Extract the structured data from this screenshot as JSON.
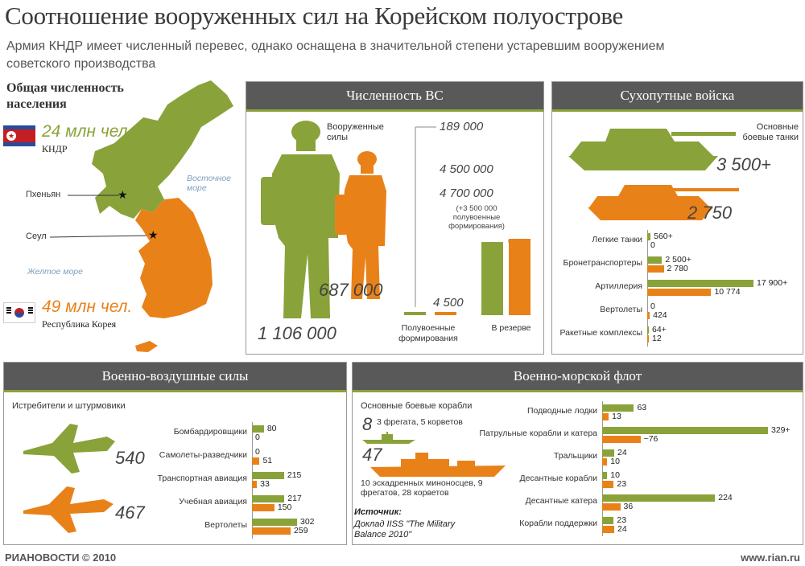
{
  "header": {
    "title": "Соотношение вооруженных сил на Корейском полуострове",
    "subtitle": "Армия КНДР имеет численный перевес, однако оснащена в значительной степени устаревшим вооружением советского производства"
  },
  "map": {
    "heading": "Общая численность населения",
    "north_pop": "24 млн чел.",
    "north_name": "КНДР",
    "south_pop": "49 млн чел.",
    "south_name": "Республика Корея",
    "pyongyang": "Пхеньян",
    "seoul": "Сеул",
    "east_sea": "Восточное море",
    "yellow_sea": "Желтое море"
  },
  "colors": {
    "north": "#8aa23a",
    "south": "#e98119",
    "header_bg": "#595959"
  },
  "armed": {
    "heading": "Численность ВС",
    "people_label": "Вооруженные силы",
    "north_total": "1 106 000",
    "south_total": "687 000",
    "para_label": "Полувоенные формирования",
    "reserve_label": "В резерве",
    "north_para": "189 000",
    "south_para": "4 500",
    "north_reserve": "4 500 000",
    "south_reserve": "4 700 000",
    "south_reserve_note": "(+3 500 000 полувоенные формирования)"
  },
  "ground": {
    "heading": "Сухопутные войска",
    "tanks_label": "Основные боевые танки",
    "north_tanks": "3 500+",
    "south_tanks": "2 750"
  },
  "air": {
    "heading": "Военно-воздушные силы",
    "fighters_label": "Истребители и штурмовики",
    "north_fighters": "540",
    "south_fighters": "467"
  },
  "navy": {
    "heading": "Военно-морской флот",
    "ships_label": "Основные боевые корабли",
    "north_ships": "8",
    "north_ships_note": "3 фрегата, 5 корветов",
    "south_ships": "47",
    "south_ships_note": "10 эскадренных миноносцев, 9 фрегатов, 28 корветов",
    "source_label": "Источник:",
    "source_text": "Доклад IISS \"The Military Balance 2010\""
  },
  "footer": {
    "left": "РИАНОВОСТИ © 2010",
    "right": "www.rian.ru"
  },
  "chart_data": [
    {
      "type": "bar",
      "title": "Сухопутные войска",
      "categories": [
        "Легкие танки",
        "Бронетранспортеры",
        "Артиллерия",
        "Вертолеты",
        "Ракетные комплексы"
      ],
      "series": [
        {
          "name": "КНДР",
          "values": [
            560,
            2500,
            17900,
            0,
            64
          ],
          "labels": [
            "560+",
            "2 500+",
            "17 900+",
            "0",
            "64+"
          ]
        },
        {
          "name": "Республика Корея",
          "values": [
            0,
            2780,
            10774,
            424,
            12
          ],
          "labels": [
            "0",
            "2 780",
            "10 774",
            "424",
            "12"
          ]
        }
      ]
    },
    {
      "type": "bar",
      "title": "Военно-воздушные силы",
      "categories": [
        "Бомбардировщики",
        "Самолеты-разведчики",
        "Транспортная авиация",
        "Учебная авиация",
        "Вертолеты"
      ],
      "series": [
        {
          "name": "КНДР",
          "values": [
            80,
            0,
            215,
            217,
            302
          ],
          "labels": [
            "80",
            "0",
            "215",
            "217",
            "302"
          ]
        },
        {
          "name": "Республика Корея",
          "values": [
            0,
            51,
            33,
            150,
            259
          ],
          "labels": [
            "0",
            "51",
            "33",
            "150",
            "259"
          ]
        }
      ]
    },
    {
      "type": "bar",
      "title": "Военно-морской флот",
      "categories": [
        "Подводные лодки",
        "Патрульные корабли и катера",
        "Тральщики",
        "Десантные корабли",
        "Десантные катера",
        "Корабли поддержки"
      ],
      "series": [
        {
          "name": "КНДР",
          "values": [
            63,
            329,
            24,
            10,
            224,
            23
          ],
          "labels": [
            "63",
            "329+",
            "24",
            "10",
            "224",
            "23"
          ]
        },
        {
          "name": "Республика Корея",
          "values": [
            13,
            76,
            10,
            23,
            36,
            24
          ],
          "labels": [
            "13",
            "~76",
            "10",
            "23",
            "36",
            "24"
          ]
        }
      ]
    },
    {
      "type": "bar",
      "title": "Численность ВС",
      "categories": [
        "Полувоенные формирования",
        "В резерве"
      ],
      "series": [
        {
          "name": "КНДР",
          "values": [
            189000,
            4500000
          ]
        },
        {
          "name": "Республика Корея",
          "values": [
            4500,
            4700000
          ]
        }
      ]
    }
  ]
}
